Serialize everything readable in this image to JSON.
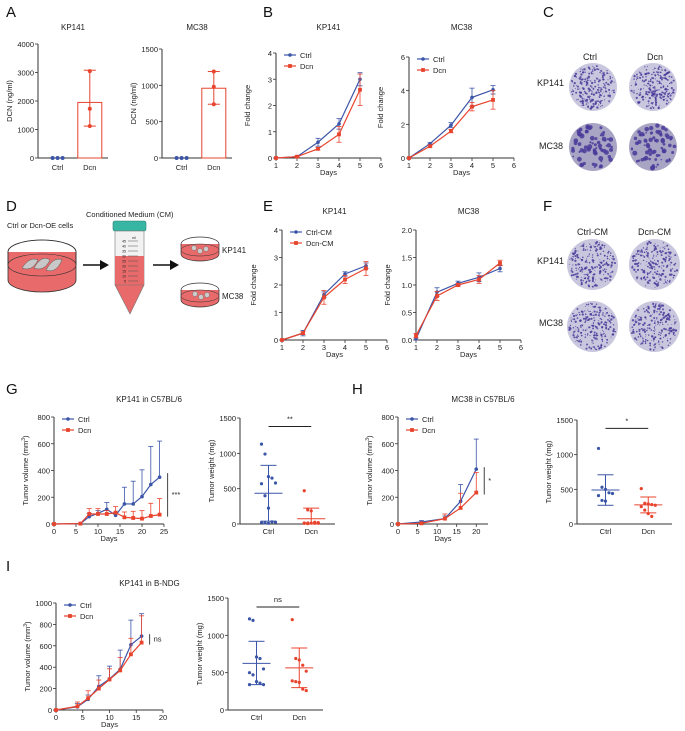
{
  "panel_letters": [
    "A",
    "B",
    "C",
    "D",
    "E",
    "F",
    "G",
    "H",
    "I"
  ],
  "colors": {
    "ctrl": "#3b55a8",
    "dcn": "#e8432d",
    "axis": "#333333",
    "dish_fill": "#e86a6a",
    "cap": "#38b6a4",
    "crystal_violet": "#4a3a9a"
  },
  "panel_c": {
    "columns": [
      "Ctrl",
      "Dcn"
    ],
    "rows": [
      "KP141",
      "MC38"
    ]
  },
  "panel_d": {
    "cells_label": "Ctrl or Dcn-OE cells",
    "cm_label": "Conditioned Medium (CM)",
    "tube_unit": "ml",
    "tube_ticks": [
      "45",
      "40",
      "35",
      "30",
      "25",
      "20",
      "15",
      "10",
      "5"
    ],
    "targets": [
      "KP141",
      "MC38"
    ]
  },
  "panel_f": {
    "columns": [
      "Ctrl-CM",
      "Dcn-CM"
    ],
    "rows": [
      "KP141",
      "MC38"
    ]
  },
  "chart_data": [
    {
      "id": "A1",
      "type": "bar",
      "title": "KP141",
      "ylabel": "DCN (ng/ml)",
      "xlabel": "",
      "categories": [
        "Ctrl",
        "Dcn"
      ],
      "ylim": [
        0,
        4000
      ],
      "yticks": [
        0,
        1000,
        2000,
        3000,
        4000
      ],
      "values": [
        0,
        1950
      ],
      "error_low": [
        0,
        1120
      ],
      "error_high": [
        0,
        3080
      ],
      "points": [
        [
          0,
          0,
          0
        ],
        [
          3050,
          1730,
          1120
        ]
      ]
    },
    {
      "id": "A2",
      "type": "bar",
      "title": "MC38",
      "ylabel": "DCN (ng/ml)",
      "xlabel": "",
      "categories": [
        "Ctrl",
        "Dcn"
      ],
      "ylim": [
        0,
        1500
      ],
      "yticks": [
        0,
        500,
        1000,
        1500
      ],
      "values": [
        0,
        960
      ],
      "error_low": [
        0,
        740
      ],
      "error_high": [
        0,
        1190
      ],
      "points": [
        [
          0,
          0,
          0
        ],
        [
          1190,
          980,
          740
        ]
      ]
    },
    {
      "id": "B1",
      "type": "line",
      "title": "KP141",
      "xlabel": "Days",
      "ylabel": "Fold change",
      "xlim": [
        1,
        6
      ],
      "xticks": [
        1,
        2,
        3,
        4,
        5,
        6
      ],
      "ylim": [
        0,
        4
      ],
      "yticks": [
        0,
        1,
        2,
        3,
        4
      ],
      "legend": "top-left",
      "x": [
        1,
        2,
        3,
        4,
        5
      ],
      "series": [
        {
          "name": "Ctrl",
          "values": [
            0,
            0.05,
            0.6,
            1.3,
            3.0
          ],
          "err": [
            0,
            0.02,
            0.15,
            0.2,
            0.25
          ]
        },
        {
          "name": "Dcn",
          "values": [
            0,
            0.05,
            0.35,
            0.9,
            2.6
          ],
          "err": [
            0,
            0.02,
            0.05,
            0.3,
            0.6
          ]
        }
      ]
    },
    {
      "id": "B2",
      "type": "line",
      "title": "MC38",
      "xlabel": "Days",
      "ylabel": "Fold change",
      "xlim": [
        1,
        6
      ],
      "xticks": [
        1,
        2,
        3,
        4,
        5,
        6
      ],
      "ylim": [
        0,
        6
      ],
      "yticks": [
        0,
        2,
        4,
        6
      ],
      "legend": "top-left",
      "x": [
        1,
        2,
        3,
        4,
        5
      ],
      "series": [
        {
          "name": "Ctrl",
          "values": [
            0,
            0.85,
            1.95,
            3.6,
            4.05
          ],
          "err": [
            0,
            0.05,
            0.15,
            0.55,
            0.25
          ]
        },
        {
          "name": "Dcn",
          "values": [
            0,
            0.7,
            1.6,
            3.05,
            3.45
          ],
          "err": [
            0,
            0.05,
            0.1,
            0.25,
            0.55
          ]
        }
      ]
    },
    {
      "id": "E1",
      "type": "line",
      "title": "KP141",
      "xlabel": "Days",
      "ylabel": "Fold change",
      "xlim": [
        1,
        6
      ],
      "xticks": [
        1,
        2,
        3,
        4,
        5,
        6
      ],
      "ylim": [
        0,
        4
      ],
      "yticks": [
        0,
        1,
        2,
        3,
        4
      ],
      "legend": "top-left",
      "x": [
        1,
        2,
        3,
        4,
        5
      ],
      "series": [
        {
          "name": "Ctrl-CM",
          "values": [
            0,
            0.25,
            1.65,
            2.4,
            2.7
          ],
          "err": [
            0,
            0.1,
            0.1,
            0.08,
            0.1
          ]
        },
        {
          "name": "Dcn-CM",
          "values": [
            0,
            0.25,
            1.55,
            2.2,
            2.6
          ],
          "err": [
            0,
            0.05,
            0.25,
            0.15,
            0.25
          ]
        }
      ]
    },
    {
      "id": "E2",
      "type": "line",
      "title": "MC38",
      "xlabel": "Days",
      "ylabel": "Fold change",
      "xlim": [
        1,
        6
      ],
      "xticks": [
        1,
        2,
        3,
        4,
        5,
        6
      ],
      "ylim": [
        0,
        2.0
      ],
      "yticks": [
        0.0,
        0.5,
        1.0,
        1.5,
        2.0
      ],
      "ytick_labels": [
        "0.0",
        "0.5",
        "1.0",
        "1.5",
        "2.0"
      ],
      "legend": "none",
      "x": [
        1,
        2,
        3,
        4,
        5
      ],
      "series": [
        {
          "name": "Ctrl-CM",
          "values": [
            0.02,
            0.87,
            1.03,
            1.14,
            1.3
          ],
          "err": [
            0.02,
            0.08,
            0.04,
            0.08,
            0.06
          ]
        },
        {
          "name": "Dcn-CM",
          "values": [
            0.08,
            0.8,
            1.0,
            1.1,
            1.4
          ],
          "err": [
            0.04,
            0.08,
            0.03,
            0.07,
            0.05
          ]
        }
      ]
    },
    {
      "id": "G1",
      "type": "line",
      "title": "KP141 in C57BL/6",
      "xlabel": "Days",
      "ylabel": "Tumor volume (mm3)",
      "xlim": [
        0,
        25
      ],
      "xticks": [
        0,
        5,
        10,
        15,
        20,
        25
      ],
      "ylim": [
        0,
        800
      ],
      "yticks": [
        0,
        200,
        400,
        600,
        800
      ],
      "legend": "top-left",
      "significance": "***",
      "x": [
        0,
        6,
        8,
        10,
        12,
        14,
        16,
        18,
        20,
        22,
        24
      ],
      "series": [
        {
          "name": "Ctrl",
          "values": [
            0,
            3,
            55,
            80,
            110,
            65,
            150,
            150,
            205,
            295,
            350
          ],
          "err": [
            0,
            0,
            25,
            20,
            50,
            20,
            125,
            170,
            200,
            285,
            270
          ]
        },
        {
          "name": "Dcn",
          "values": [
            0,
            3,
            75,
            75,
            75,
            85,
            50,
            45,
            40,
            60,
            70
          ],
          "err": [
            0,
            0,
            40,
            40,
            25,
            45,
            40,
            50,
            60,
            95,
            120
          ]
        }
      ]
    },
    {
      "id": "G2",
      "type": "scatter",
      "title": "",
      "ylabel": "Tumor weight (mg)",
      "xlabel": "",
      "categories": [
        "Ctrl",
        "Dcn"
      ],
      "ylim": [
        0,
        1500
      ],
      "yticks": [
        0,
        500,
        1000,
        1500
      ],
      "significance": "**",
      "mean": [
        435,
        75
      ],
      "sd_low": [
        40,
        0
      ],
      "sd_high": [
        830,
        225
      ],
      "points": [
        [
          1130,
          990,
          670,
          650,
          580,
          570,
          400,
          225,
          30,
          25,
          20,
          15,
          10
        ],
        [
          470,
          200,
          185,
          25,
          20,
          15,
          15,
          12,
          10,
          10,
          8,
          5
        ]
      ]
    },
    {
      "id": "H1",
      "type": "line",
      "title": "MC38 in C57BL/6",
      "xlabel": "Days",
      "ylabel": "Tumor volume (mm3)",
      "xlim": [
        0,
        23
      ],
      "xticks": [
        0,
        5,
        10,
        15,
        20
      ],
      "ylim": [
        0,
        800
      ],
      "yticks": [
        0,
        200,
        400,
        600,
        800
      ],
      "legend": "top-left",
      "significance": "*",
      "x": [
        0,
        6,
        12,
        16,
        20
      ],
      "series": [
        {
          "name": "Ctrl",
          "values": [
            0,
            15,
            40,
            170,
            410
          ],
          "err": [
            0,
            10,
            20,
            125,
            225
          ]
        },
        {
          "name": "Dcn",
          "values": [
            0,
            5,
            40,
            120,
            235
          ],
          "err": [
            0,
            5,
            35,
            110,
            150
          ]
        }
      ]
    },
    {
      "id": "H2",
      "type": "scatter",
      "title": "",
      "ylabel": "Tumor weight (mg)",
      "xlabel": "",
      "categories": [
        "Ctrl",
        "Dcn"
      ],
      "ylim": [
        0,
        1500
      ],
      "yticks": [
        0,
        500,
        1000,
        1500
      ],
      "significance": "*",
      "mean": [
        490,
        275
      ],
      "sd_low": [
        270,
        160
      ],
      "sd_high": [
        710,
        390
      ],
      "points": [
        [
          1090,
          530,
          500,
          450,
          440,
          410,
          340,
          330
        ],
        [
          510,
          300,
          290,
          280,
          270,
          250,
          200,
          150,
          110
        ]
      ]
    },
    {
      "id": "I1",
      "type": "line",
      "title": "KP141 in B-NDG",
      "xlabel": "Days",
      "ylabel": "Tumor volume (mm3)",
      "xlim": [
        0,
        20
      ],
      "xticks": [
        0,
        5,
        10,
        15,
        20
      ],
      "ylim": [
        0,
        1000
      ],
      "yticks": [
        0,
        200,
        400,
        600,
        800,
        1000
      ],
      "legend": "top-left",
      "significance": "ns",
      "x": [
        0,
        4,
        6,
        8,
        10,
        12,
        14,
        16
      ],
      "series": [
        {
          "name": "Ctrl",
          "values": [
            0,
            30,
            100,
            220,
            290,
            380,
            610,
            690
          ],
          "err": [
            0,
            30,
            40,
            100,
            120,
            180,
            230,
            210
          ]
        },
        {
          "name": "Dcn",
          "values": [
            0,
            35,
            110,
            200,
            285,
            370,
            520,
            630
          ],
          "err": [
            0,
            40,
            70,
            80,
            100,
            120,
            150,
            250
          ]
        }
      ]
    },
    {
      "id": "I2",
      "type": "scatter",
      "title": "",
      "ylabel": "Tumor weight (mg)",
      "xlabel": "",
      "categories": [
        "Ctrl",
        "Dcn"
      ],
      "ylim": [
        0,
        1500
      ],
      "yticks": [
        0,
        500,
        1000,
        1500
      ],
      "significance": "ns",
      "mean": [
        625,
        565
      ],
      "sd_low": [
        340,
        300
      ],
      "sd_high": [
        920,
        830
      ],
      "points": [
        [
          1220,
          1200,
          710,
          690,
          550,
          500,
          470,
          380,
          360,
          340,
          340
        ],
        [
          1210,
          690,
          670,
          600,
          520,
          390,
          380,
          370,
          280,
          260
        ]
      ]
    }
  ]
}
